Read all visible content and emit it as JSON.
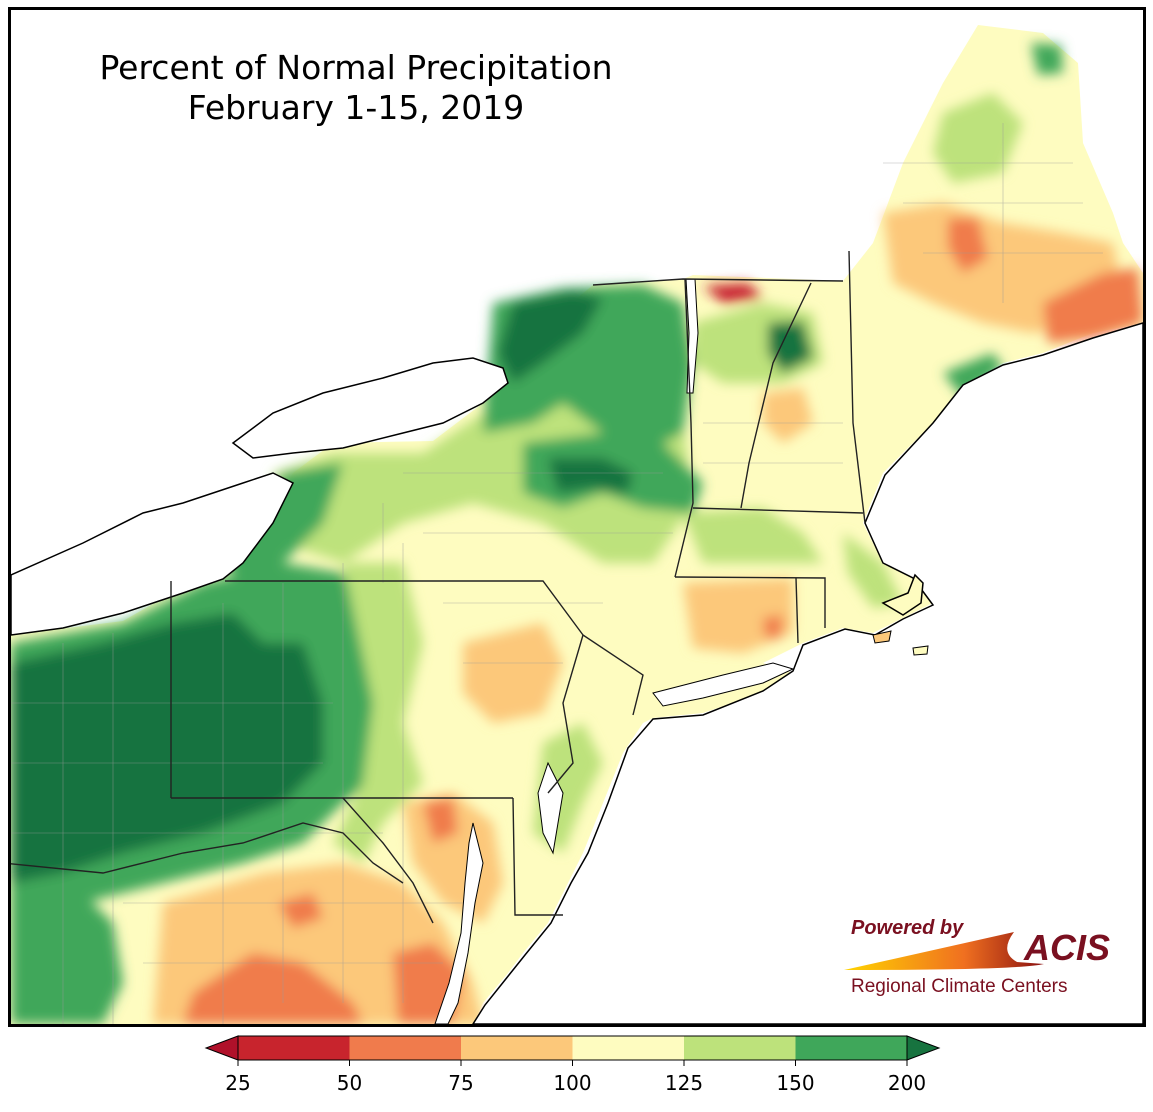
{
  "title": {
    "line1": "Percent of Normal Precipitation",
    "line2": "February 1-15, 2019"
  },
  "legend": {
    "ticks": [
      "25",
      "50",
      "75",
      "100",
      "125",
      "150",
      "200"
    ],
    "bins": [
      {
        "from": 25,
        "to": 50,
        "color": "#c8242d"
      },
      {
        "from": 50,
        "to": 75,
        "color": "#f07b4c"
      },
      {
        "from": 75,
        "to": 100,
        "color": "#fcc87a"
      },
      {
        "from": 100,
        "to": 125,
        "color": "#fefcc0"
      },
      {
        "from": 125,
        "to": 150,
        "color": "#bde27b"
      },
      {
        "from": 150,
        "to": 200,
        "color": "#3fa75a"
      }
    ],
    "under_color": "#b0112a",
    "over_color": "#17733f"
  },
  "logo": {
    "powered_by": "Powered by",
    "name": "ACIS",
    "subtitle": "Regional Climate Centers",
    "text_color": "#7a1020"
  },
  "colors": {
    "water": "#ffffff",
    "state_border": "#222222",
    "county_border": "#9a9a9a",
    "very_high": "#17733f"
  }
}
